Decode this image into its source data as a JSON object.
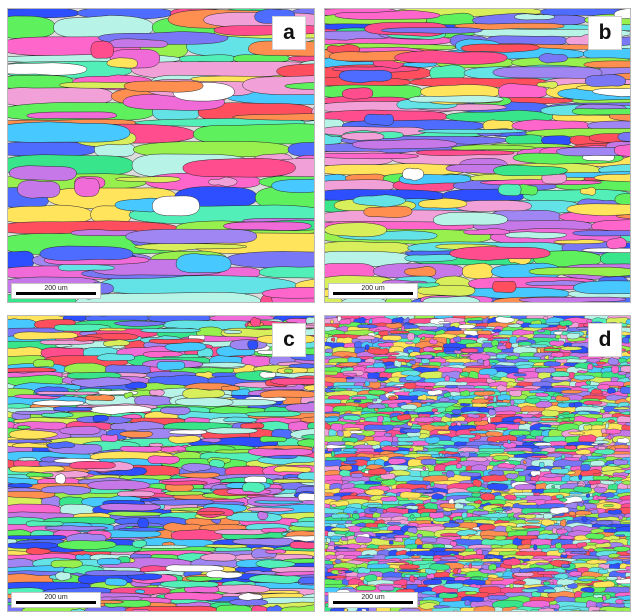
{
  "figure": {
    "panels": [
      {
        "label": "a",
        "scale_label": "200 um",
        "grain_size": "coarse"
      },
      {
        "label": "b",
        "scale_label": "200 um",
        "grain_size": "coarse"
      },
      {
        "label": "c",
        "scale_label": "200 um",
        "grain_size": "medium"
      },
      {
        "label": "d",
        "scale_label": "200 um",
        "grain_size": "fine"
      }
    ]
  },
  "palette": {
    "ipf_colors": [
      "#ff4d8d",
      "#ff66cc",
      "#f06ad8",
      "#c678e8",
      "#9f86f2",
      "#7a77f7",
      "#4e6cff",
      "#2d4fff",
      "#47c9ff",
      "#63e3e6",
      "#52f0b8",
      "#39e58a",
      "#5ef05d",
      "#98f04e",
      "#d8ee5a",
      "#ffe45c",
      "#ff8f50",
      "#ff4f5f",
      "#f2a0d8",
      "#b8f3e8",
      "#ffffff"
    ],
    "boundary": "#2c2c2c",
    "panel_background": "#dcdcdc"
  }
}
